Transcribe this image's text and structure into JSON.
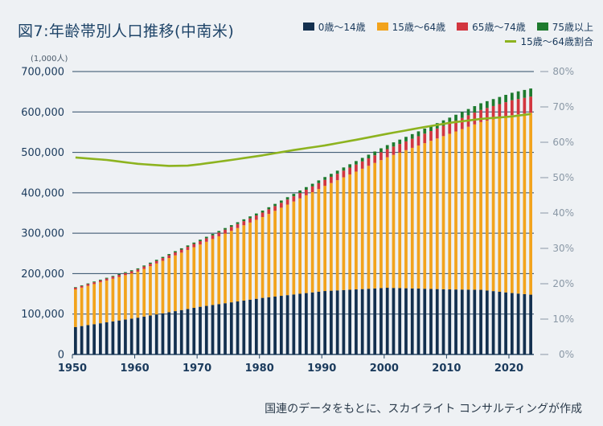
{
  "title": "図7:年齢帯別人口推移(中南米)",
  "unit_label": "(1,000人)",
  "source_note": "国連のデータをもとに、スカイライト コンサルティングが作成",
  "colors": {
    "age_0_14": "#13304f",
    "age_15_64": "#f2a31c",
    "age_65_74": "#d2363f",
    "age_75_plus": "#1e7a2e",
    "ratio_line": "#8db31f",
    "grid": "#2d4a66"
  },
  "chart_data": {
    "type": "bar",
    "stacked": true,
    "x_start": 1950,
    "x_end": 2023,
    "x_ticks": [
      "1950",
      "1960",
      "1970",
      "1980",
      "1990",
      "2000",
      "2010",
      "2020"
    ],
    "y_left_ticks": [
      "0",
      "100,000",
      "200,000",
      "300,000",
      "400,000",
      "500,000",
      "600,000",
      "700,000"
    ],
    "y_left_lim": [
      0,
      700000
    ],
    "y_right_ticks": [
      "0%",
      "10%",
      "20%",
      "30%",
      "40%",
      "50%",
      "60%",
      "70%",
      "80%"
    ],
    "y_right_lim": [
      0,
      80
    ],
    "grid": true,
    "legend_position": "top-right",
    "series": [
      {
        "name": "0歳〜14歳",
        "keyframes": [
          [
            1950,
            68000
          ],
          [
            1960,
            91000
          ],
          [
            1970,
            118000
          ],
          [
            1980,
            140000
          ],
          [
            1990,
            157000
          ],
          [
            2000,
            165000
          ],
          [
            2010,
            161000
          ],
          [
            2015,
            160000
          ],
          [
            2020,
            152000
          ],
          [
            2023,
            148000
          ]
        ]
      },
      {
        "name": "15歳〜64歳",
        "keyframes": [
          [
            1950,
            93000
          ],
          [
            1960,
            114000
          ],
          [
            1970,
            154000
          ],
          [
            1980,
            200000
          ],
          [
            1990,
            260000
          ],
          [
            2000,
            323000
          ],
          [
            2010,
            385000
          ],
          [
            2015,
            415000
          ],
          [
            2020,
            440000
          ],
          [
            2023,
            450000
          ]
        ]
      },
      {
        "name": "65歳〜74歳",
        "keyframes": [
          [
            1950,
            4000
          ],
          [
            1960,
            5500
          ],
          [
            1970,
            8500
          ],
          [
            1980,
            11000
          ],
          [
            1990,
            15000
          ],
          [
            2000,
            20000
          ],
          [
            2010,
            26000
          ],
          [
            2015,
            30000
          ],
          [
            2020,
            37000
          ],
          [
            2023,
            40000
          ]
        ]
      },
      {
        "name": "75歳以上",
        "keyframes": [
          [
            1950,
            1500
          ],
          [
            1960,
            2500
          ],
          [
            1970,
            3500
          ],
          [
            1980,
            5000
          ],
          [
            1990,
            7000
          ],
          [
            2000,
            10000
          ],
          [
            2010,
            14000
          ],
          [
            2015,
            16500
          ],
          [
            2020,
            18500
          ],
          [
            2023,
            20000
          ]
        ]
      },
      {
        "name": "15歳〜64歳割合",
        "type": "line",
        "axis": "right",
        "keyframes": [
          [
            1950,
            55.7
          ],
          [
            1955,
            55.0
          ],
          [
            1960,
            53.9
          ],
          [
            1965,
            53.3
          ],
          [
            1968,
            53.4
          ],
          [
            1970,
            53.8
          ],
          [
            1975,
            55.0
          ],
          [
            1980,
            56.3
          ],
          [
            1985,
            57.8
          ],
          [
            1990,
            59.1
          ],
          [
            1995,
            60.7
          ],
          [
            2000,
            62.4
          ],
          [
            2005,
            64.0
          ],
          [
            2010,
            65.5
          ],
          [
            2015,
            66.6
          ],
          [
            2020,
            67.3
          ],
          [
            2023,
            68.0
          ]
        ]
      }
    ]
  }
}
